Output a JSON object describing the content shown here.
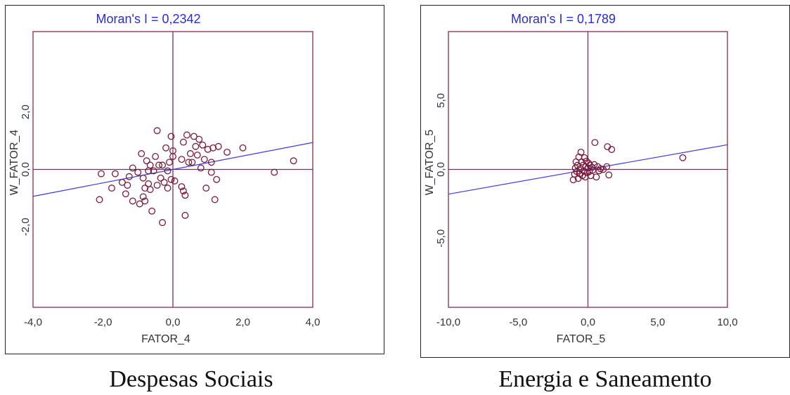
{
  "chart_data": [
    {
      "type": "scatter",
      "title": "Moran's I = 0,2342",
      "xlabel": "FATOR_4",
      "ylabel": "W_FATOR_4",
      "caption": "Despesas Sociais",
      "xlim": [
        -4,
        4
      ],
      "ylim": [
        -4.8,
        4.8
      ],
      "x_ticks": [
        -4,
        -2,
        0,
        2,
        4
      ],
      "x_tick_labels": [
        "-4,0",
        "-2,0",
        "0,0",
        "2,0",
        "4,0"
      ],
      "y_ticks": [
        2,
        0,
        -2
      ],
      "y_tick_labels": [
        "2,0",
        "0,0",
        "-2,0"
      ],
      "regression_slope": 0.2342,
      "grid": false,
      "points": [
        [
          -2.1,
          -1.05
        ],
        [
          -2.05,
          -0.15
        ],
        [
          -1.75,
          -0.65
        ],
        [
          -1.65,
          -0.15
        ],
        [
          -1.45,
          -0.45
        ],
        [
          -1.35,
          -0.85
        ],
        [
          -1.3,
          -0.55
        ],
        [
          -1.25,
          -0.25
        ],
        [
          -1.15,
          0.05
        ],
        [
          -1.15,
          -1.1
        ],
        [
          -1.0,
          -0.1
        ],
        [
          -0.95,
          -1.2
        ],
        [
          -0.9,
          0.55
        ],
        [
          -0.85,
          -0.95
        ],
        [
          -0.85,
          -0.3
        ],
        [
          -0.8,
          -0.65
        ],
        [
          -0.8,
          -1.1
        ],
        [
          -0.75,
          0.3
        ],
        [
          -0.7,
          -0.5
        ],
        [
          -0.7,
          -0.05
        ],
        [
          -0.65,
          0.15
        ],
        [
          -0.65,
          -0.7
        ],
        [
          -0.6,
          -1.45
        ],
        [
          -0.55,
          -0.05
        ],
        [
          -0.5,
          0.45
        ],
        [
          -0.45,
          1.35
        ],
        [
          -0.45,
          -0.55
        ],
        [
          -0.4,
          0.15
        ],
        [
          -0.35,
          -0.3
        ],
        [
          -0.3,
          -1.85
        ],
        [
          -0.3,
          0.15
        ],
        [
          -0.25,
          -0.45
        ],
        [
          -0.2,
          0.75
        ],
        [
          -0.15,
          -0.05
        ],
        [
          -0.15,
          -0.65
        ],
        [
          -0.1,
          0.25
        ],
        [
          -0.05,
          1.15
        ],
        [
          -0.05,
          -0.35
        ],
        [
          0.0,
          0.65
        ],
        [
          0.0,
          0.45
        ],
        [
          0.05,
          -0.4
        ],
        [
          0.25,
          0.35
        ],
        [
          0.25,
          -0.6
        ],
        [
          0.3,
          0.95
        ],
        [
          0.3,
          -0.75
        ],
        [
          0.35,
          -0.9
        ],
        [
          0.4,
          1.2
        ],
        [
          0.45,
          0.25
        ],
        [
          0.5,
          0.55
        ],
        [
          0.55,
          0.25
        ],
        [
          0.6,
          1.15
        ],
        [
          0.65,
          0.8
        ],
        [
          0.7,
          0.5
        ],
        [
          0.75,
          1.05
        ],
        [
          0.8,
          0.05
        ],
        [
          0.85,
          0.85
        ],
        [
          0.9,
          0.35
        ],
        [
          0.95,
          -0.65
        ],
        [
          1.0,
          0.7
        ],
        [
          1.1,
          0.25
        ],
        [
          1.1,
          -0.1
        ],
        [
          1.15,
          0.75
        ],
        [
          1.2,
          -1.05
        ],
        [
          1.25,
          -0.35
        ],
        [
          1.3,
          0.8
        ],
        [
          1.55,
          0.6
        ],
        [
          2.0,
          0.75
        ],
        [
          2.9,
          -0.1
        ],
        [
          3.45,
          0.3
        ],
        [
          0.35,
          -1.6
        ]
      ]
    },
    {
      "type": "scatter",
      "title": "Moran's I = 0,1789",
      "xlabel": "FATOR_5",
      "ylabel": "W_FATOR_5",
      "caption": "Energia e Saneamento",
      "xlim": [
        -10,
        10
      ],
      "ylim": [
        -10,
        10
      ],
      "x_ticks": [
        -10,
        -5,
        0,
        5,
        10
      ],
      "x_tick_labels": [
        "-10,0",
        "-5,0",
        "0,0",
        "5,0",
        "10,0"
      ],
      "y_ticks": [
        5,
        0,
        -5
      ],
      "y_tick_labels": [
        "5,0",
        "0,0",
        "-5,0"
      ],
      "regression_slope": 0.1789,
      "grid": false,
      "points": [
        [
          -1.05,
          -0.75
        ],
        [
          -0.95,
          -0.35
        ],
        [
          -0.9,
          0.1
        ],
        [
          -0.85,
          0.55
        ],
        [
          -0.8,
          -0.15
        ],
        [
          -0.75,
          0.3
        ],
        [
          -0.7,
          -0.65
        ],
        [
          -0.65,
          0.9
        ],
        [
          -0.6,
          -0.3
        ],
        [
          -0.55,
          0.05
        ],
        [
          -0.5,
          1.25
        ],
        [
          -0.45,
          0.55
        ],
        [
          -0.4,
          -0.45
        ],
        [
          -0.35,
          0.3
        ],
        [
          -0.3,
          -0.1
        ],
        [
          -0.25,
          0.85
        ],
        [
          -0.2,
          -0.55
        ],
        [
          -0.15,
          0.2
        ],
        [
          -0.1,
          0.6
        ],
        [
          -0.05,
          -0.25
        ],
        [
          0.0,
          0.1
        ],
        [
          0.05,
          0.45
        ],
        [
          0.1,
          -0.15
        ],
        [
          0.15,
          0.3
        ],
        [
          0.2,
          -0.45
        ],
        [
          0.3,
          0.15
        ],
        [
          0.35,
          -0.05
        ],
        [
          0.45,
          0.35
        ],
        [
          0.5,
          1.95
        ],
        [
          0.6,
          -0.55
        ],
        [
          0.7,
          0.2
        ],
        [
          0.8,
          -0.1
        ],
        [
          0.9,
          0.05
        ],
        [
          1.1,
          0.0
        ],
        [
          1.35,
          0.2
        ],
        [
          1.4,
          1.65
        ],
        [
          1.5,
          -0.4
        ],
        [
          1.7,
          1.45
        ],
        [
          6.8,
          0.85
        ]
      ]
    }
  ]
}
